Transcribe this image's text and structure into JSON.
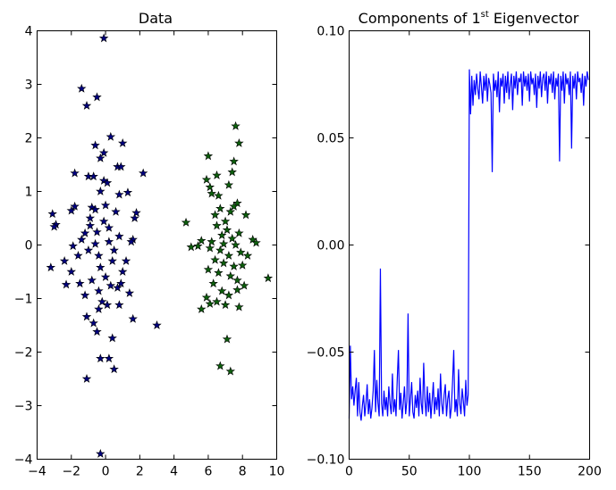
{
  "colors": {
    "series1": "#00007f",
    "series2": "#0c5f0c",
    "line": "#0000ff",
    "frame": "#000000"
  },
  "chart_data": [
    {
      "type": "scatter",
      "title": "Data",
      "xlabel": "",
      "ylabel": "",
      "xlim": [
        -4,
        10
      ],
      "ylim": [
        -4,
        4
      ],
      "xticks": [
        -4,
        -2,
        0,
        2,
        4,
        6,
        8,
        10
      ],
      "yticks": [
        -4,
        -3,
        -2,
        -1,
        0,
        1,
        2,
        3,
        4
      ],
      "xtick_labels": [
        "−4",
        "−2",
        "0",
        "2",
        "4",
        "6",
        "8",
        "10"
      ],
      "ytick_labels": [
        "−4",
        "−3",
        "−2",
        "−1",
        "0",
        "1",
        "2",
        "3",
        "4"
      ],
      "marker": "star",
      "grid": false,
      "series": [
        {
          "color": "#00007f",
          "points": [
            [
              -0.1,
              3.86
            ],
            [
              -1.4,
              2.92
            ],
            [
              -0.5,
              2.76
            ],
            [
              -1.1,
              2.6
            ],
            [
              0.3,
              2.02
            ],
            [
              -0.6,
              1.86
            ],
            [
              1.0,
              1.9
            ],
            [
              -0.1,
              1.72
            ],
            [
              -0.3,
              1.62
            ],
            [
              -1.8,
              1.34
            ],
            [
              -1.0,
              1.28
            ],
            [
              0.7,
              1.46
            ],
            [
              2.2,
              1.34
            ],
            [
              -0.7,
              1.28
            ],
            [
              -0.1,
              1.2
            ],
            [
              0.1,
              1.16
            ],
            [
              0.9,
              1.46
            ],
            [
              -0.3,
              1.0
            ],
            [
              0.8,
              0.94
            ],
            [
              1.3,
              0.98
            ],
            [
              -3.1,
              0.58
            ],
            [
              -2.9,
              0.38
            ],
            [
              -2.0,
              0.64
            ],
            [
              -1.8,
              0.72
            ],
            [
              -0.8,
              0.7
            ],
            [
              -0.6,
              0.66
            ],
            [
              0.0,
              0.74
            ],
            [
              0.6,
              0.62
            ],
            [
              1.8,
              0.6
            ],
            [
              1.7,
              0.5
            ],
            [
              -3.0,
              0.34
            ],
            [
              -1.4,
              0.1
            ],
            [
              -1.2,
              0.22
            ],
            [
              -0.9,
              0.36
            ],
            [
              -0.5,
              0.24
            ],
            [
              -0.1,
              0.44
            ],
            [
              0.2,
              0.32
            ],
            [
              0.8,
              0.16
            ],
            [
              1.6,
              0.1
            ],
            [
              1.5,
              0.06
            ],
            [
              -2.4,
              -0.3
            ],
            [
              -2.0,
              -0.5
            ],
            [
              -1.6,
              -0.2
            ],
            [
              -1.0,
              -0.1
            ],
            [
              -0.6,
              0.02
            ],
            [
              -0.3,
              -0.42
            ],
            [
              0.0,
              -0.6
            ],
            [
              0.4,
              -0.3
            ],
            [
              1.0,
              -0.5
            ],
            [
              1.2,
              -0.3
            ],
            [
              -3.2,
              -0.42
            ],
            [
              -2.3,
              -0.74
            ],
            [
              -1.5,
              -0.72
            ],
            [
              -1.2,
              -0.94
            ],
            [
              -0.8,
              -0.66
            ],
            [
              -0.4,
              -0.86
            ],
            [
              0.3,
              -0.76
            ],
            [
              0.7,
              -0.8
            ],
            [
              0.9,
              -0.72
            ],
            [
              1.4,
              -0.9
            ],
            [
              -0.2,
              -1.06
            ],
            [
              -0.4,
              -1.2
            ],
            [
              0.1,
              -1.12
            ],
            [
              -1.1,
              -1.34
            ],
            [
              -0.7,
              -1.46
            ],
            [
              0.8,
              -1.12
            ],
            [
              1.6,
              -1.38
            ],
            [
              3.0,
              -1.5
            ],
            [
              -0.5,
              -1.62
            ],
            [
              0.4,
              -1.74
            ],
            [
              -0.3,
              -2.12
            ],
            [
              0.2,
              -2.12
            ],
            [
              0.5,
              -2.32
            ],
            [
              -1.1,
              -2.5
            ],
            [
              -0.3,
              -3.9
            ],
            [
              -0.9,
              0.5
            ],
            [
              -0.4,
              -0.2
            ],
            [
              0.2,
              0.06
            ],
            [
              -1.9,
              -0.02
            ],
            [
              0.5,
              -0.1
            ]
          ]
        },
        {
          "color": "#0c5f0c",
          "points": [
            [
              7.6,
              2.22
            ],
            [
              7.8,
              1.9
            ],
            [
              7.5,
              1.56
            ],
            [
              6.0,
              1.66
            ],
            [
              7.4,
              1.36
            ],
            [
              6.5,
              1.3
            ],
            [
              5.9,
              1.22
            ],
            [
              6.1,
              1.08
            ],
            [
              7.2,
              1.12
            ],
            [
              6.6,
              0.92
            ],
            [
              6.2,
              0.96
            ],
            [
              7.7,
              0.78
            ],
            [
              7.5,
              0.72
            ],
            [
              7.3,
              0.62
            ],
            [
              6.7,
              0.68
            ],
            [
              6.4,
              0.56
            ],
            [
              8.2,
              0.56
            ],
            [
              7.0,
              0.44
            ],
            [
              6.5,
              0.36
            ],
            [
              4.7,
              0.42
            ],
            [
              7.1,
              0.28
            ],
            [
              7.8,
              0.22
            ],
            [
              7.4,
              0.12
            ],
            [
              6.8,
              0.18
            ],
            [
              6.2,
              0.06
            ],
            [
              8.6,
              0.1
            ],
            [
              8.8,
              0.04
            ],
            [
              5.6,
              0.08
            ],
            [
              7.6,
              0.0
            ],
            [
              6.1,
              -0.06
            ],
            [
              5.0,
              -0.04
            ],
            [
              5.4,
              -0.02
            ],
            [
              6.7,
              -0.1
            ],
            [
              7.2,
              -0.2
            ],
            [
              7.9,
              -0.14
            ],
            [
              8.3,
              -0.2
            ],
            [
              6.4,
              -0.28
            ],
            [
              6.9,
              -0.34
            ],
            [
              7.5,
              -0.4
            ],
            [
              8.0,
              -0.38
            ],
            [
              9.5,
              -0.62
            ],
            [
              6.0,
              -0.46
            ],
            [
              6.6,
              -0.52
            ],
            [
              7.3,
              -0.58
            ],
            [
              7.7,
              -0.66
            ],
            [
              8.1,
              -0.76
            ],
            [
              6.3,
              -0.72
            ],
            [
              6.8,
              -0.86
            ],
            [
              7.2,
              -0.94
            ],
            [
              5.9,
              -0.98
            ],
            [
              6.5,
              -1.06
            ],
            [
              7.0,
              -1.12
            ],
            [
              7.8,
              -1.16
            ],
            [
              5.6,
              -1.2
            ],
            [
              6.1,
              -1.1
            ],
            [
              7.1,
              -1.76
            ],
            [
              6.7,
              -2.26
            ],
            [
              7.3,
              -2.36
            ],
            [
              7.7,
              -0.84
            ],
            [
              6.9,
              0.02
            ]
          ]
        }
      ]
    },
    {
      "type": "line",
      "title_prefix": "Components of 1",
      "title_sup": "st",
      "title_suffix": " Eigenvector",
      "xlabel": "",
      "ylabel": "",
      "xlim": [
        0,
        200
      ],
      "ylim": [
        -0.1,
        0.1
      ],
      "xticks": [
        0,
        50,
        100,
        150,
        200
      ],
      "yticks": [
        -0.1,
        -0.05,
        0.0,
        0.05,
        0.1
      ],
      "xtick_labels": [
        "0",
        "50",
        "100",
        "150",
        "200"
      ],
      "ytick_labels": [
        "−0.10",
        "−0.05",
        "0.00",
        "0.05",
        "0.10"
      ],
      "grid": false,
      "series": [
        {
          "color": "#0000ff",
          "y": [
            -0.081,
            -0.047,
            -0.072,
            -0.066,
            -0.075,
            -0.068,
            -0.062,
            -0.08,
            -0.064,
            -0.078,
            -0.082,
            -0.075,
            -0.07,
            -0.08,
            -0.074,
            -0.065,
            -0.079,
            -0.072,
            -0.081,
            -0.076,
            -0.068,
            -0.049,
            -0.078,
            -0.063,
            -0.074,
            -0.08,
            -0.011,
            -0.074,
            -0.08,
            -0.068,
            -0.077,
            -0.071,
            -0.08,
            -0.066,
            -0.074,
            -0.079,
            -0.06,
            -0.078,
            -0.072,
            -0.08,
            -0.063,
            -0.049,
            -0.077,
            -0.069,
            -0.081,
            -0.074,
            -0.066,
            -0.079,
            -0.073,
            -0.032,
            -0.08,
            -0.072,
            -0.064,
            -0.078,
            -0.081,
            -0.07,
            -0.076,
            -0.068,
            -0.08,
            -0.062,
            -0.074,
            -0.079,
            -0.055,
            -0.072,
            -0.08,
            -0.066,
            -0.078,
            -0.069,
            -0.081,
            -0.073,
            -0.064,
            -0.079,
            -0.071,
            -0.077,
            -0.067,
            -0.08,
            -0.06,
            -0.074,
            -0.079,
            -0.07,
            -0.065,
            -0.08,
            -0.072,
            -0.068,
            -0.081,
            -0.076,
            -0.064,
            -0.049,
            -0.078,
            -0.072,
            -0.08,
            -0.058,
            -0.074,
            -0.079,
            -0.067,
            -0.073,
            -0.08,
            -0.063,
            -0.075,
            -0.07,
            0.082,
            0.061,
            0.079,
            0.065,
            0.077,
            0.07,
            0.08,
            0.073,
            0.068,
            0.081,
            0.074,
            0.066,
            0.079,
            0.072,
            0.08,
            0.067,
            0.078,
            0.075,
            0.071,
            0.034,
            0.08,
            0.072,
            0.077,
            0.069,
            0.081,
            0.062,
            0.078,
            0.074,
            0.08,
            0.066,
            0.079,
            0.071,
            0.081,
            0.068,
            0.075,
            0.08,
            0.063,
            0.079,
            0.073,
            0.081,
            0.07,
            0.078,
            0.076,
            0.08,
            0.065,
            0.081,
            0.074,
            0.079,
            0.072,
            0.08,
            0.067,
            0.081,
            0.075,
            0.078,
            0.07,
            0.08,
            0.064,
            0.079,
            0.073,
            0.081,
            0.069,
            0.078,
            0.08,
            0.072,
            0.081,
            0.066,
            0.079,
            0.075,
            0.08,
            0.071,
            0.081,
            0.068,
            0.078,
            0.074,
            0.08,
            0.039,
            0.079,
            0.072,
            0.081,
            0.066,
            0.08,
            0.075,
            0.078,
            0.07,
            0.081,
            0.045,
            0.079,
            0.073,
            0.08,
            0.068,
            0.081,
            0.076,
            0.078,
            0.071,
            0.08,
            0.065,
            0.079,
            0.074,
            0.081,
            0.077
          ]
        }
      ]
    }
  ]
}
